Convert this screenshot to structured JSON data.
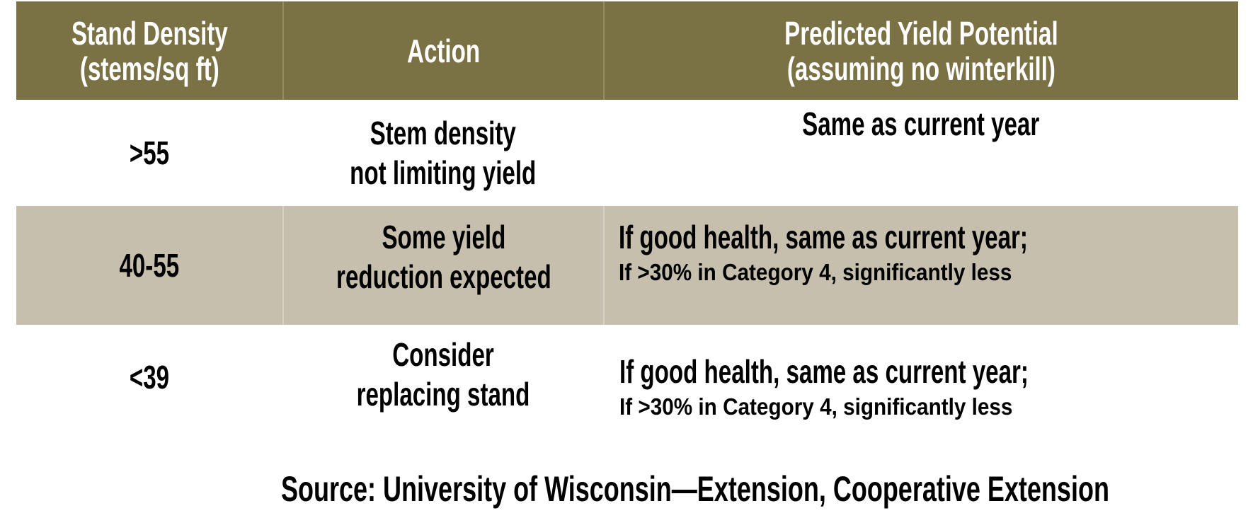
{
  "table": {
    "headers": [
      [
        "Stand Density",
        "(stems/sq ft)"
      ],
      [
        "Action"
      ],
      [
        "Predicted Yield Potential",
        "(assuming no winterkill)"
      ]
    ],
    "rows": [
      {
        "density": ">55",
        "action": [
          "Stem density",
          "not limiting yield"
        ],
        "yield": [
          "Same as current year"
        ]
      },
      {
        "density": "40-55",
        "action": [
          "Some yield",
          "reduction expected"
        ],
        "yield": [
          "If good health, same as current year;",
          "If >30% in Category 4, significantly less"
        ]
      },
      {
        "density": "<39",
        "action": [
          "Consider",
          "replacing stand"
        ],
        "yield": [
          "If good health, same as current year;",
          "If >30% in Category 4, significantly less"
        ]
      }
    ],
    "colors": {
      "header_bg": "#7a7245",
      "shaded_row_bg": "#c6bfad"
    }
  },
  "source": "Source: University of Wisconsin—Extension, Cooperative Extension"
}
